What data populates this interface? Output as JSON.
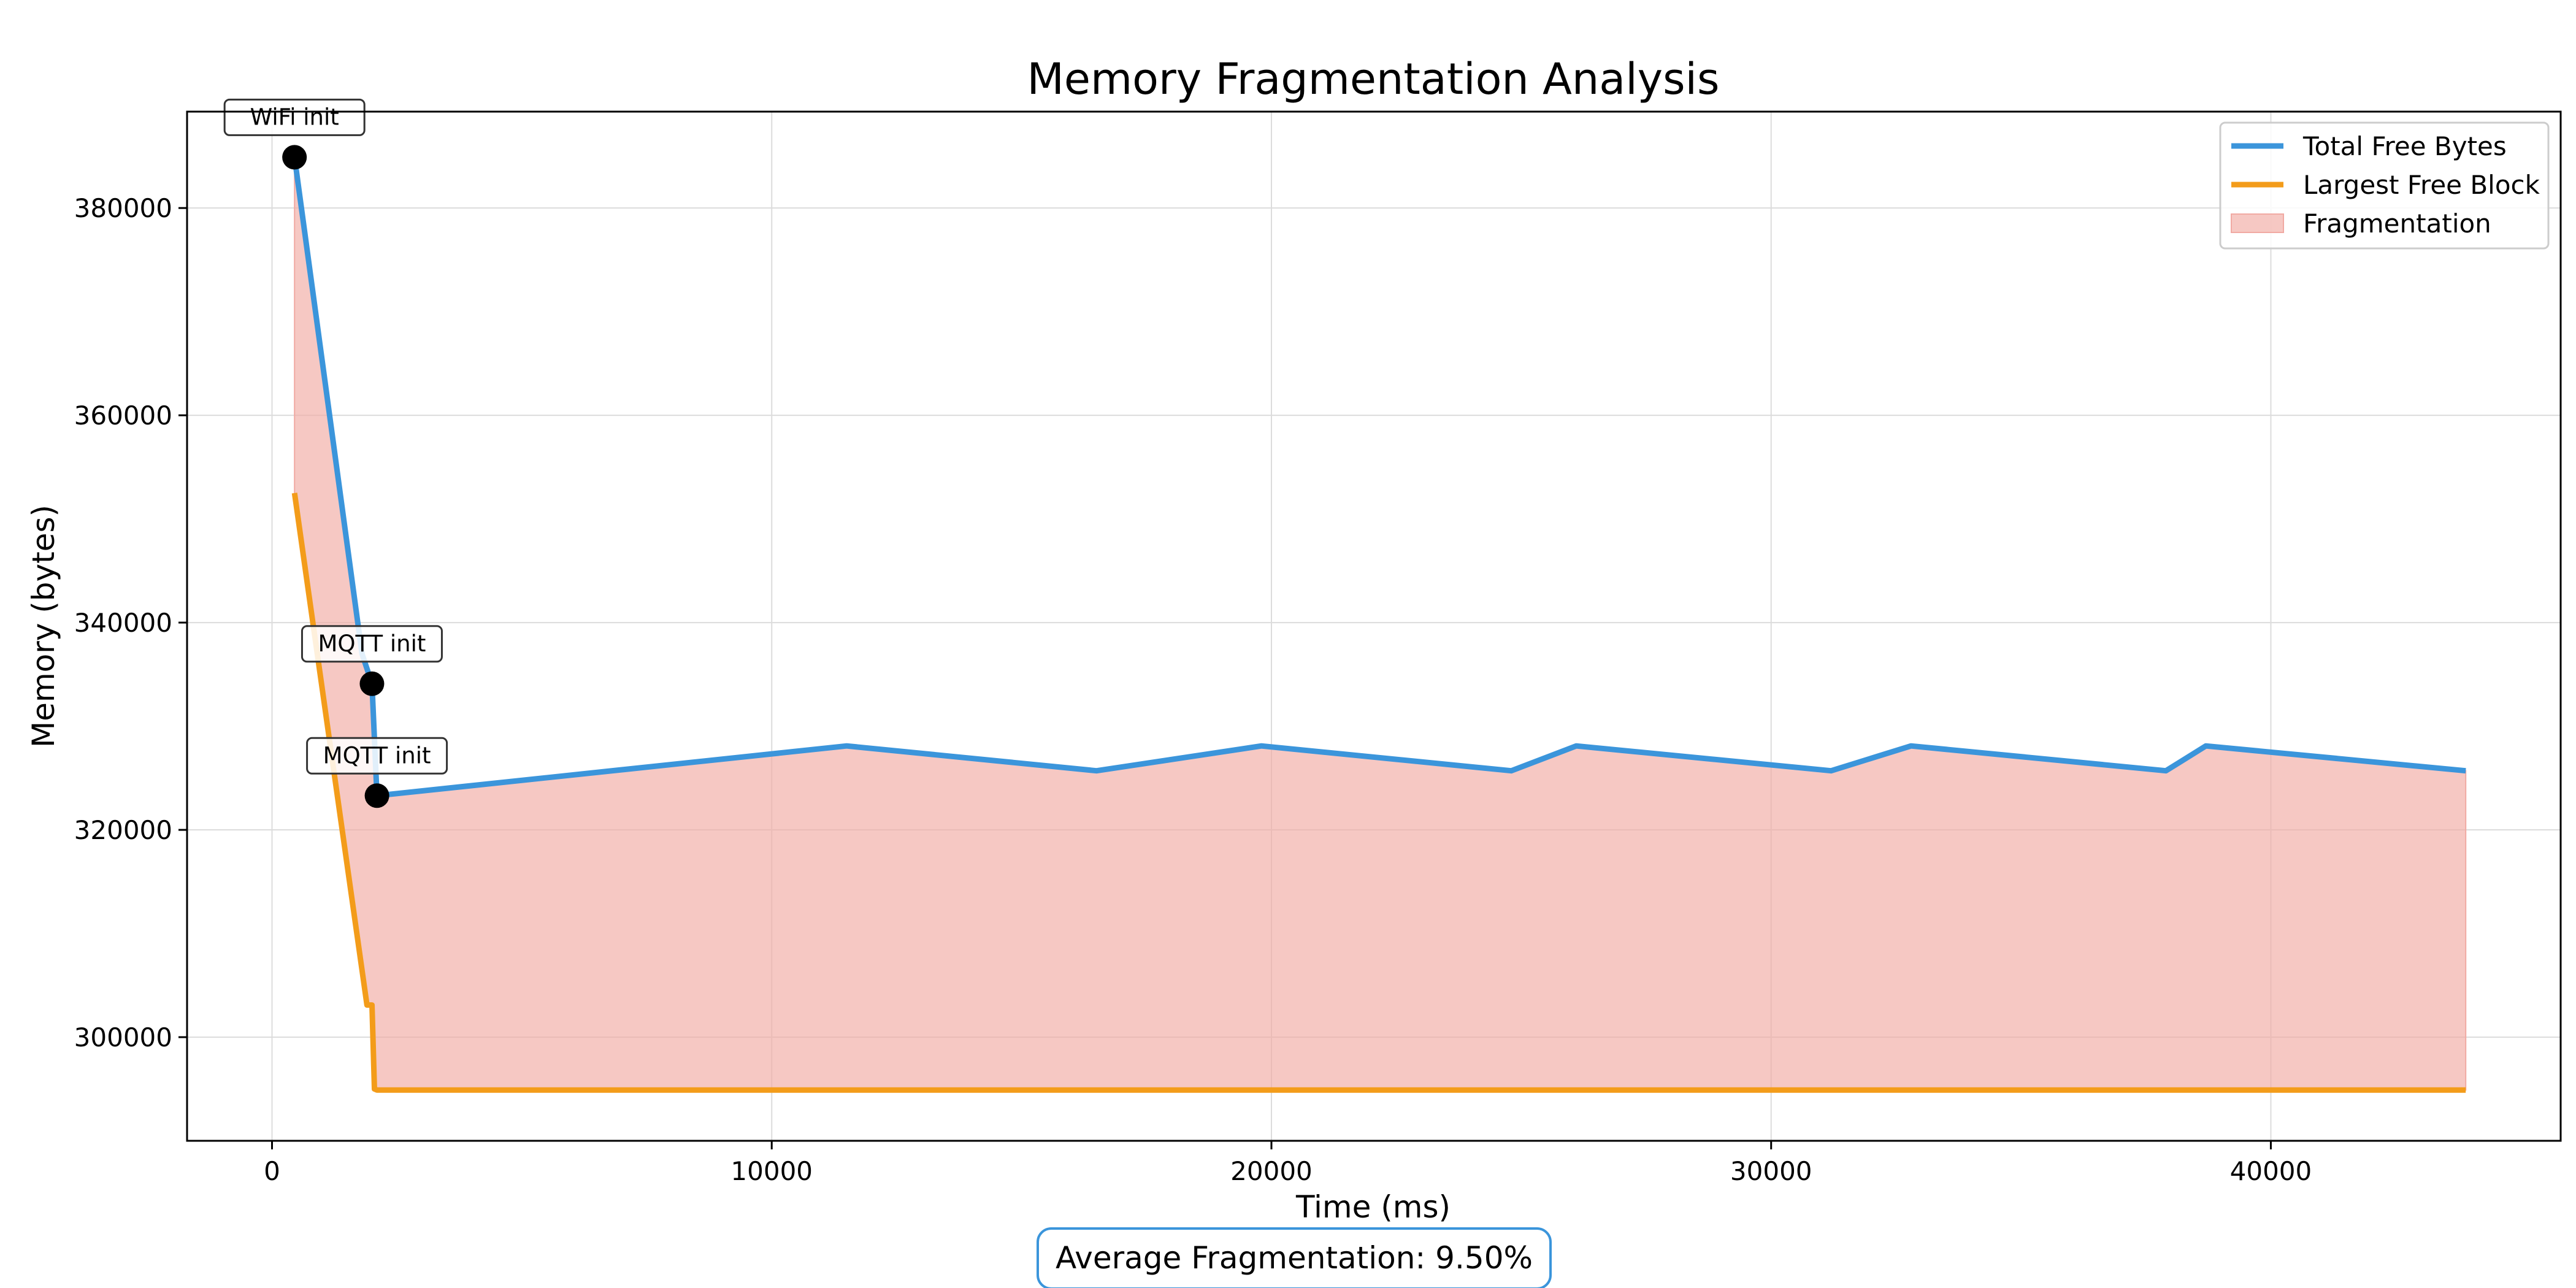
{
  "chart_data": {
    "type": "area",
    "title": "Memory Fragmentation Analysis",
    "xlabel": "Time (ms)",
    "ylabel": "Memory (bytes)",
    "xlim": [
      -1700,
      45800
    ],
    "ylim": [
      290000,
      389300
    ],
    "xticks": [
      0,
      10000,
      20000,
      30000,
      40000
    ],
    "yticks": [
      300000,
      320000,
      340000,
      360000,
      380000
    ],
    "grid": true,
    "legend_position": "top-right",
    "series": [
      {
        "name": "Total Free Bytes",
        "color": "#3b95db",
        "x": [
          450,
          1800,
          2000,
          2100,
          11500,
          16500,
          19800,
          24800,
          26100,
          31200,
          32800,
          37900,
          38700,
          43900
        ],
        "y": [
          384900,
          337000,
          334100,
          323300,
          328100,
          325700,
          328100,
          325700,
          328100,
          325700,
          328100,
          325700,
          328100,
          325700
        ]
      },
      {
        "name": "Largest Free Block",
        "color": "#f39c1a",
        "x": [
          450,
          1900,
          2000,
          2050,
          2100,
          43900
        ],
        "y": [
          352500,
          303100,
          303100,
          295000,
          294900,
          294900
        ]
      }
    ],
    "fill": {
      "name": "Fragmentation",
      "color": "#f1aaa3"
    },
    "annotations": [
      {
        "text": "WiFi init",
        "x": 450,
        "y": 384900
      },
      {
        "text": "MQTT init",
        "x": 2000,
        "y": 334100
      },
      {
        "text": "MQTT init",
        "x": 2100,
        "y": 323300
      }
    ],
    "footer": "Average Fragmentation: 9.50%",
    "footer_border_color": "#3b95db"
  }
}
